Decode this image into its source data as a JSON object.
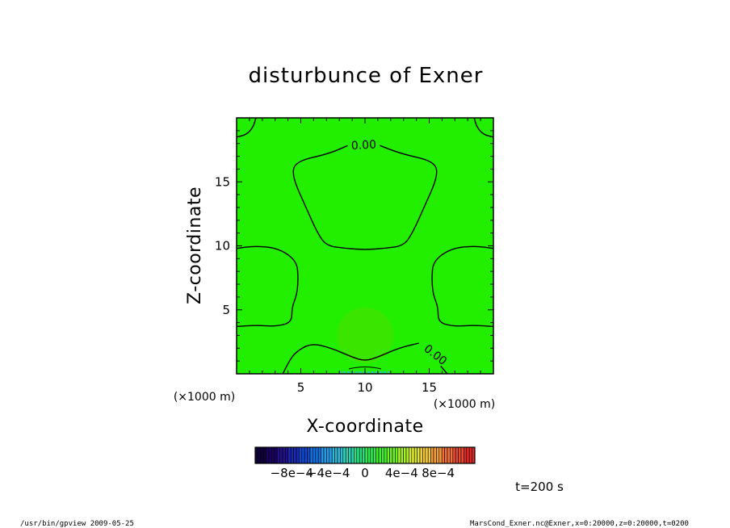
{
  "chart_data": {
    "type": "heatmap",
    "title": "disturbunce of Exner",
    "xlabel": "X-coordinate",
    "ylabel": "Z-coordinate",
    "x_unit": "(×1000 m)",
    "y_unit": "(×1000 m)",
    "xlim": [
      0,
      20
    ],
    "ylim": [
      0,
      20
    ],
    "x_ticks": [
      5,
      10,
      15
    ],
    "y_ticks": [
      5,
      10,
      15
    ],
    "x_tick_labels": [
      "5",
      "10",
      "15"
    ],
    "y_tick_labels": [
      "5",
      "10",
      "15"
    ],
    "background_color": "#22ee00",
    "contour_labels": [
      {
        "text": "0.00",
        "x": 9.9,
        "z": 17.9,
        "angle": -3
      },
      {
        "text": "0.00",
        "x": 15.5,
        "z": 1.5,
        "angle": 38
      }
    ],
    "contours": [
      {
        "level": 0,
        "points": [
          [
            8.8,
            17.9
          ],
          [
            7.2,
            17.2
          ],
          [
            4.6,
            16.6
          ],
          [
            4.3,
            15.5
          ],
          [
            5.4,
            13.0
          ],
          [
            6.3,
            11.0
          ],
          [
            7.0,
            10.0
          ],
          [
            8.5,
            9.8
          ],
          [
            10,
            9.7
          ],
          [
            11.5,
            9.8
          ],
          [
            13.0,
            10.0
          ],
          [
            13.7,
            11.0
          ],
          [
            14.6,
            13.0
          ],
          [
            15.7,
            15.5
          ],
          [
            15.4,
            16.6
          ],
          [
            12.8,
            17.2
          ],
          [
            11.0,
            17.9
          ]
        ]
      },
      {
        "level": 0,
        "points": [
          [
            0,
            9.8
          ],
          [
            1.5,
            10.0
          ],
          [
            3.3,
            9.8
          ],
          [
            4.7,
            8.8
          ],
          [
            4.8,
            7.4
          ],
          [
            4.7,
            6.2
          ],
          [
            4.3,
            5.2
          ],
          [
            4.3,
            4.0
          ],
          [
            3.0,
            3.7
          ],
          [
            1.6,
            3.8
          ],
          [
            0,
            3.7
          ]
        ]
      },
      {
        "level": 0,
        "points": [
          [
            20,
            9.8
          ],
          [
            18.5,
            10.0
          ],
          [
            16.7,
            9.8
          ],
          [
            15.3,
            8.8
          ],
          [
            15.2,
            7.4
          ],
          [
            15.3,
            6.2
          ],
          [
            15.7,
            5.2
          ],
          [
            15.7,
            4.0
          ],
          [
            17.0,
            3.7
          ],
          [
            18.4,
            3.8
          ],
          [
            20,
            3.7
          ]
        ]
      },
      {
        "level": 0,
        "points": [
          [
            3.6,
            0
          ],
          [
            4.1,
            1.0
          ],
          [
            4.6,
            1.7
          ],
          [
            5.8,
            2.4
          ],
          [
            7.4,
            2.0
          ],
          [
            9.0,
            1.3
          ],
          [
            10.0,
            1.0
          ],
          [
            11.0,
            1.3
          ],
          [
            12.6,
            2.0
          ],
          [
            14.2,
            2.4
          ]
        ]
      },
      {
        "level": 0,
        "points": [
          [
            16.4,
            0
          ],
          [
            15.9,
            0.6
          ]
        ]
      },
      {
        "level": 0,
        "points": [
          [
            0,
            18.5
          ],
          [
            0.8,
            18.7
          ],
          [
            1.3,
            19.3
          ],
          [
            1.5,
            20
          ]
        ]
      },
      {
        "level": 0,
        "points": [
          [
            20,
            18.5
          ],
          [
            19.2,
            18.7
          ],
          [
            18.7,
            19.3
          ],
          [
            18.5,
            20
          ]
        ]
      }
    ],
    "anomaly": {
      "x": 10,
      "z": 3,
      "r": 2.2
    },
    "colorbar": {
      "range": [
        -0.0012,
        0.0012
      ],
      "tick_values": [
        -0.0008,
        -0.0004,
        0,
        0.0004,
        0.0008
      ],
      "tick_labels": [
        "−8e−4",
        "−4e−4",
        "0",
        "4e−4",
        "8e−4"
      ],
      "colors": [
        "#10003a",
        "#1a0060",
        "#22108a",
        "#1a2ab0",
        "#1048d0",
        "#1070e0",
        "#2898e8",
        "#30b8d8",
        "#30d0b0",
        "#28e080",
        "#30e850",
        "#40ee30",
        "#70f028",
        "#a8f028",
        "#d8e830",
        "#f0c838",
        "#f09c3a",
        "#f07038",
        "#e84a32",
        "#e02828"
      ]
    },
    "time_label": "t=200 s",
    "footer_left": "/usr/bin/gpview  2009-05-25",
    "footer_right": "MarsCond_Exner.nc@Exner,x=0:20000,z=0:20000,t=0200"
  }
}
